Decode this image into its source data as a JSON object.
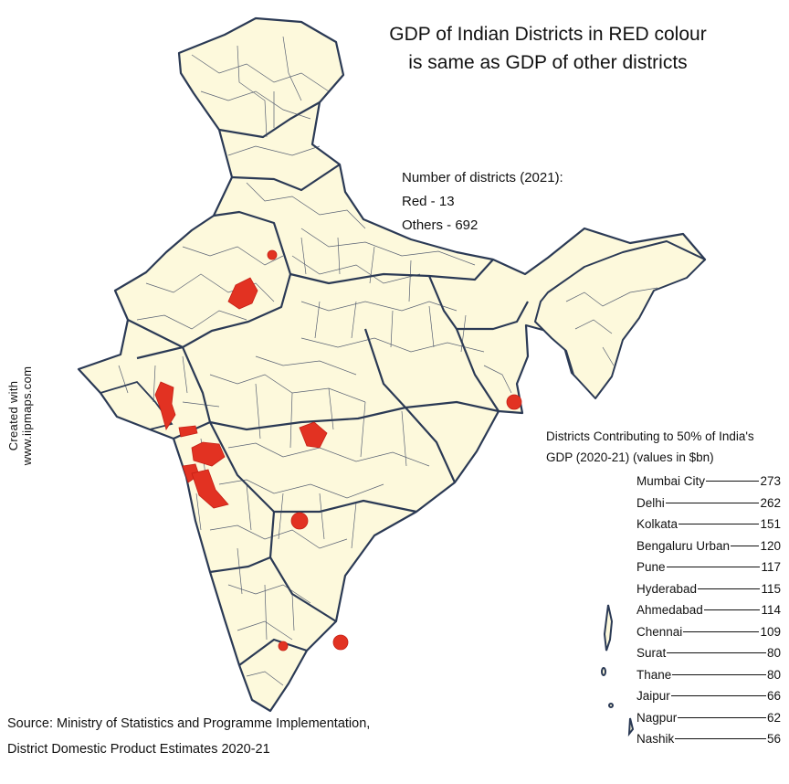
{
  "title": {
    "line1": "GDP of Indian Districts in RED colour",
    "line2": "is same as GDP of other districts"
  },
  "district_counts": {
    "heading": "Number of districts (2021):",
    "red": "Red - 13",
    "others": "Others - 692"
  },
  "credit": "Created with www.iipmaps.com",
  "ranking": {
    "title_line1": "Districts Contributing to 50% of India's",
    "title_line2": "GDP (2020-21) (values in $bn)",
    "items": [
      {
        "name": "Mumbai City",
        "value": "273"
      },
      {
        "name": "Delhi",
        "value": "262"
      },
      {
        "name": "Kolkata",
        "value": "151"
      },
      {
        "name": "Bengaluru Urban",
        "value": "120"
      },
      {
        "name": "Pune",
        "value": "117"
      },
      {
        "name": "Hyderabad",
        "value": "115"
      },
      {
        "name": "Ahmedabad",
        "value": "114"
      },
      {
        "name": "Chennai",
        "value": "109"
      },
      {
        "name": "Surat",
        "value": "80"
      },
      {
        "name": "Thane",
        "value": "80"
      },
      {
        "name": "Jaipur",
        "value": "66"
      },
      {
        "name": "Nagpur",
        "value": "62"
      },
      {
        "name": "Nashik",
        "value": "56"
      }
    ]
  },
  "source": {
    "line1": "Source: Ministry of Statistics and Programme Implementation,",
    "line2": "District Domestic Product Estimates 2020-21"
  },
  "colors": {
    "land": "#fdf9dc",
    "border": "#2b3a55",
    "highlight": "#e23222",
    "district_lines": "#3b4660"
  }
}
